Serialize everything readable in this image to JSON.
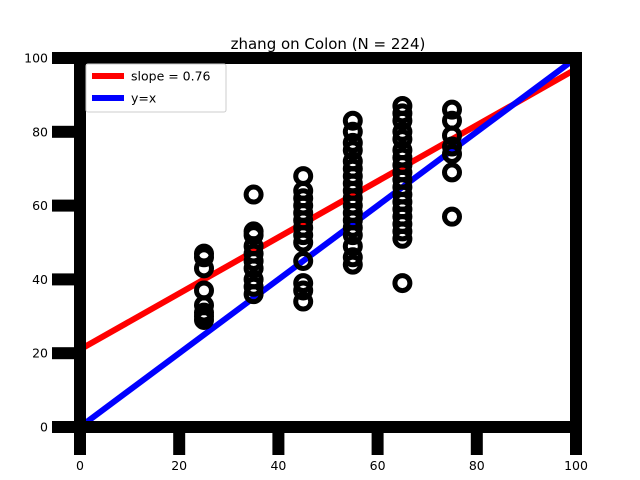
{
  "chart_data": {
    "type": "scatter",
    "title": "zhang on Colon (N = 224)",
    "xlabel": "",
    "ylabel": "",
    "xlim": [
      0,
      100
    ],
    "ylim": [
      0,
      100
    ],
    "x_ticks": [
      0,
      20,
      40,
      60,
      80,
      100
    ],
    "y_ticks": [
      0,
      20,
      40,
      60,
      80,
      100
    ],
    "grid": false,
    "legend_position": "top-left",
    "points": [
      [
        25,
        47
      ],
      [
        25,
        46
      ],
      [
        25,
        43
      ],
      [
        25,
        37
      ],
      [
        25,
        33
      ],
      [
        25,
        31
      ],
      [
        25,
        30
      ],
      [
        25,
        29
      ],
      [
        35,
        63
      ],
      [
        35,
        53
      ],
      [
        35,
        52
      ],
      [
        35,
        49
      ],
      [
        35,
        47
      ],
      [
        35,
        45
      ],
      [
        35,
        43
      ],
      [
        35,
        40
      ],
      [
        35,
        38
      ],
      [
        35,
        36
      ],
      [
        45,
        68
      ],
      [
        45,
        64
      ],
      [
        45,
        62
      ],
      [
        45,
        60
      ],
      [
        45,
        58
      ],
      [
        45,
        56
      ],
      [
        45,
        54
      ],
      [
        45,
        52
      ],
      [
        45,
        50
      ],
      [
        45,
        45
      ],
      [
        45,
        39
      ],
      [
        45,
        37
      ],
      [
        45,
        34
      ],
      [
        55,
        83
      ],
      [
        55,
        80
      ],
      [
        55,
        77
      ],
      [
        55,
        75
      ],
      [
        55,
        72
      ],
      [
        55,
        70
      ],
      [
        55,
        68
      ],
      [
        55,
        66
      ],
      [
        55,
        64
      ],
      [
        55,
        62
      ],
      [
        55,
        60
      ],
      [
        55,
        58
      ],
      [
        55,
        56
      ],
      [
        55,
        54
      ],
      [
        55,
        52
      ],
      [
        55,
        49
      ],
      [
        55,
        46
      ],
      [
        55,
        44
      ],
      [
        65,
        87
      ],
      [
        65,
        85
      ],
      [
        65,
        83
      ],
      [
        65,
        80
      ],
      [
        65,
        78
      ],
      [
        65,
        75
      ],
      [
        65,
        73
      ],
      [
        65,
        71
      ],
      [
        65,
        69
      ],
      [
        65,
        67
      ],
      [
        65,
        65
      ],
      [
        65,
        63
      ],
      [
        65,
        61
      ],
      [
        65,
        59
      ],
      [
        65,
        57
      ],
      [
        65,
        55
      ],
      [
        65,
        53
      ],
      [
        65,
        51
      ],
      [
        65,
        39
      ],
      [
        75,
        86
      ],
      [
        75,
        83
      ],
      [
        75,
        79
      ],
      [
        75,
        76
      ],
      [
        75,
        74
      ],
      [
        75,
        69
      ],
      [
        75,
        57
      ]
    ],
    "fit_lines": [
      {
        "label": "slope = 0.76",
        "color": "#ff0000",
        "x": [
          0,
          100
        ],
        "y": [
          21,
          97
        ]
      },
      {
        "label": "y=x",
        "color": "#0000ff",
        "x": [
          0,
          100
        ],
        "y": [
          0,
          100
        ]
      }
    ],
    "marker_color": "#000000"
  }
}
